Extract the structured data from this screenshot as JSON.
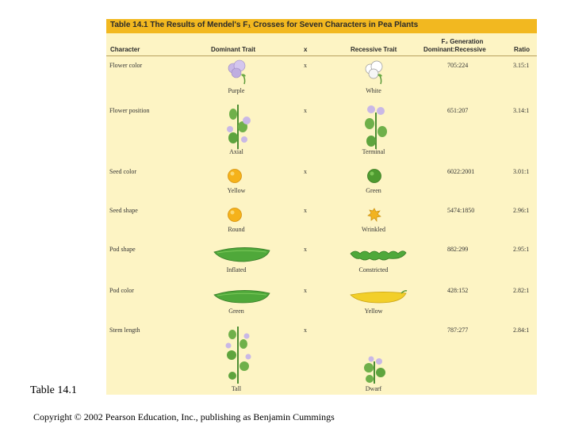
{
  "table": {
    "title": "Table 14.1  The Results of Mendel's F₁ Crosses for Seven Characters in Pea Plants",
    "columns": {
      "character": "Character",
      "dominant": "Dominant Trait",
      "cross": "x",
      "recessive": "Recessive Trait",
      "f2_line1": "F₂ Generation",
      "f2_line2": "Dominant:Recessive",
      "ratio": "Ratio"
    },
    "rows": [
      {
        "character": "Flower color",
        "dominant": "Purple",
        "cross": "x",
        "recessive": "White",
        "f2": "705:224",
        "ratio": "3.15:1"
      },
      {
        "character": "Flower position",
        "dominant": "Axial",
        "cross": "x",
        "recessive": "Terminal",
        "f2": "651:207",
        "ratio": "3.14:1"
      },
      {
        "character": "Seed color",
        "dominant": "Yellow",
        "cross": "x",
        "recessive": "Green",
        "f2": "6022:2001",
        "ratio": "3.01:1"
      },
      {
        "character": "Seed shape",
        "dominant": "Round",
        "cross": "x",
        "recessive": "Wrinkled",
        "f2": "5474:1850",
        "ratio": "2.96:1"
      },
      {
        "character": "Pod shape",
        "dominant": "Inflated",
        "cross": "x",
        "recessive": "Constricted",
        "f2": "882:299",
        "ratio": "2.95:1"
      },
      {
        "character": "Pod color",
        "dominant": "Green",
        "cross": "x",
        "recessive": "Yellow",
        "f2": "428:152",
        "ratio": "2.82:1"
      },
      {
        "character": "Stem length",
        "dominant": "Tall",
        "cross": "x",
        "recessive": "Dwarf",
        "f2": "787:277",
        "ratio": "2.84:1"
      }
    ]
  },
  "slide": {
    "label": "Table 14.1",
    "copyright": "Copyright © 2002 Pearson Education, Inc., publishing as Benjamin Cummings"
  },
  "colors": {
    "panel": "#fdf4c4",
    "header": "#f2b820",
    "purple_flower": "#c9b8e6",
    "seed_yellow": "#f5b21a",
    "pod_green": "#4fa83a",
    "pod_yellow": "#f2cf2a"
  }
}
